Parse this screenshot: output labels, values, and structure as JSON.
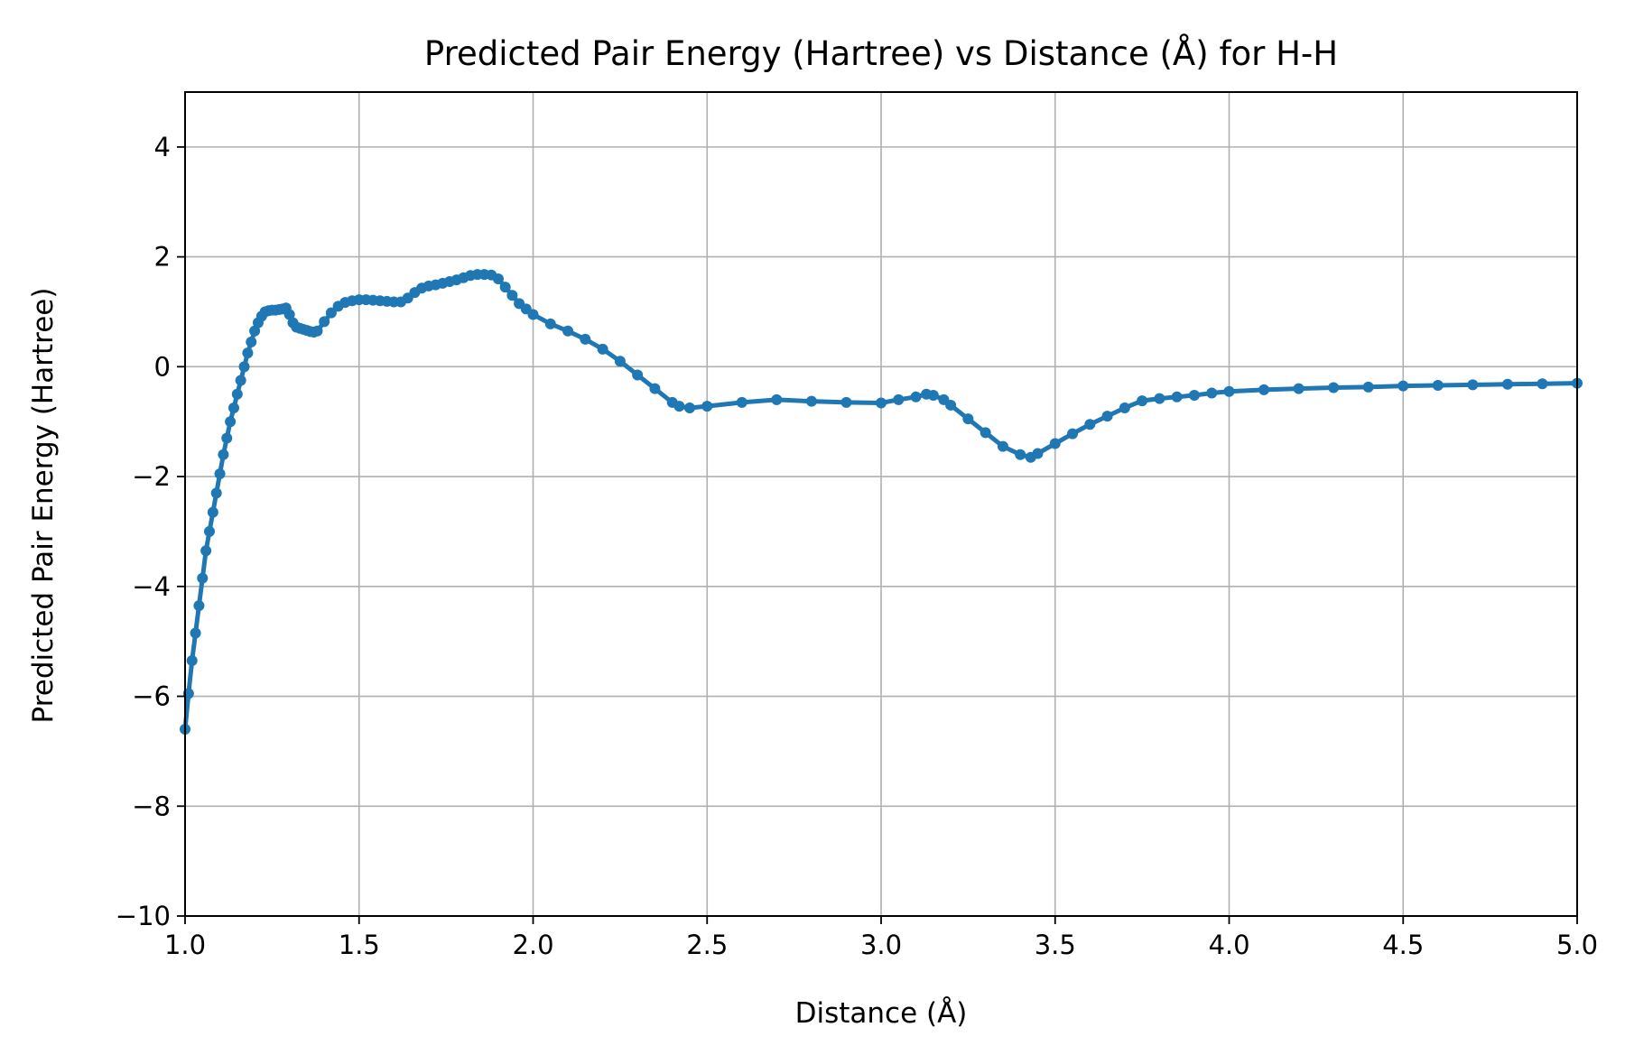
{
  "chart_data": {
    "type": "line",
    "title": "Predicted Pair Energy (Hartree) vs Distance (Å) for H-H",
    "xlabel": "Distance (Å)",
    "ylabel": "Predicted Pair Energy (Hartree)",
    "xlim": [
      1.0,
      5.0
    ],
    "ylim": [
      -10,
      5
    ],
    "xticks": [
      "1.0",
      "1.5",
      "2.0",
      "2.5",
      "3.0",
      "3.5",
      "4.0",
      "4.5",
      "5.0"
    ],
    "yticks": [
      "−10",
      "−8",
      "−6",
      "−4",
      "−2",
      "0",
      "2",
      "4"
    ],
    "grid": true,
    "marker": "dot",
    "color": "#1f77b4",
    "series": [
      {
        "x": [
          1.0,
          1.01,
          1.02,
          1.03,
          1.04,
          1.05,
          1.06,
          1.07,
          1.08,
          1.09,
          1.1,
          1.11,
          1.12,
          1.13,
          1.14,
          1.15,
          1.16,
          1.17,
          1.18,
          1.19,
          1.2,
          1.21,
          1.22,
          1.23,
          1.24,
          1.25,
          1.26,
          1.27,
          1.28,
          1.29,
          1.3,
          1.31,
          1.32,
          1.33,
          1.34,
          1.35,
          1.36,
          1.37,
          1.38,
          1.4,
          1.42,
          1.44,
          1.46,
          1.48,
          1.5,
          1.52,
          1.54,
          1.56,
          1.58,
          1.6,
          1.62,
          1.64,
          1.66,
          1.68,
          1.7,
          1.72,
          1.74,
          1.76,
          1.78,
          1.8,
          1.82,
          1.84,
          1.86,
          1.88,
          1.9,
          1.92,
          1.94,
          1.96,
          1.98,
          2.0,
          2.05,
          2.1,
          2.15,
          2.2,
          2.25,
          2.3,
          2.35,
          2.4,
          2.42,
          2.45,
          2.5,
          2.6,
          2.7,
          2.8,
          2.9,
          3.0,
          3.05,
          3.1,
          3.13,
          3.15,
          3.18,
          3.2,
          3.25,
          3.3,
          3.35,
          3.4,
          3.43,
          3.45,
          3.5,
          3.55,
          3.6,
          3.65,
          3.7,
          3.75,
          3.8,
          3.85,
          3.9,
          3.95,
          4.0,
          4.1,
          4.2,
          4.3,
          4.4,
          4.5,
          4.6,
          4.7,
          4.8,
          4.9,
          5.0
        ],
        "y": [
          -6.6,
          -5.95,
          -5.35,
          -4.85,
          -4.35,
          -3.85,
          -3.35,
          -3.0,
          -2.65,
          -2.3,
          -1.95,
          -1.6,
          -1.3,
          -1.0,
          -0.75,
          -0.5,
          -0.25,
          0.0,
          0.25,
          0.45,
          0.65,
          0.8,
          0.92,
          1.0,
          1.02,
          1.03,
          1.03,
          1.04,
          1.05,
          1.07,
          0.95,
          0.8,
          0.72,
          0.7,
          0.68,
          0.66,
          0.64,
          0.63,
          0.65,
          0.82,
          0.98,
          1.1,
          1.17,
          1.2,
          1.22,
          1.22,
          1.21,
          1.2,
          1.19,
          1.18,
          1.18,
          1.25,
          1.35,
          1.43,
          1.47,
          1.49,
          1.52,
          1.55,
          1.58,
          1.62,
          1.66,
          1.68,
          1.68,
          1.67,
          1.6,
          1.45,
          1.3,
          1.15,
          1.05,
          0.95,
          0.78,
          0.65,
          0.5,
          0.32,
          0.1,
          -0.15,
          -0.4,
          -0.65,
          -0.72,
          -0.75,
          -0.72,
          -0.65,
          -0.6,
          -0.63,
          -0.65,
          -0.66,
          -0.6,
          -0.55,
          -0.5,
          -0.52,
          -0.6,
          -0.7,
          -0.95,
          -1.2,
          -1.45,
          -1.6,
          -1.65,
          -1.58,
          -1.4,
          -1.22,
          -1.05,
          -0.9,
          -0.75,
          -0.62,
          -0.58,
          -0.55,
          -0.52,
          -0.48,
          -0.45,
          -0.42,
          -0.4,
          -0.38,
          -0.37,
          -0.35,
          -0.34,
          -0.33,
          -0.32,
          -0.31,
          -0.3
        ]
      }
    ]
  }
}
